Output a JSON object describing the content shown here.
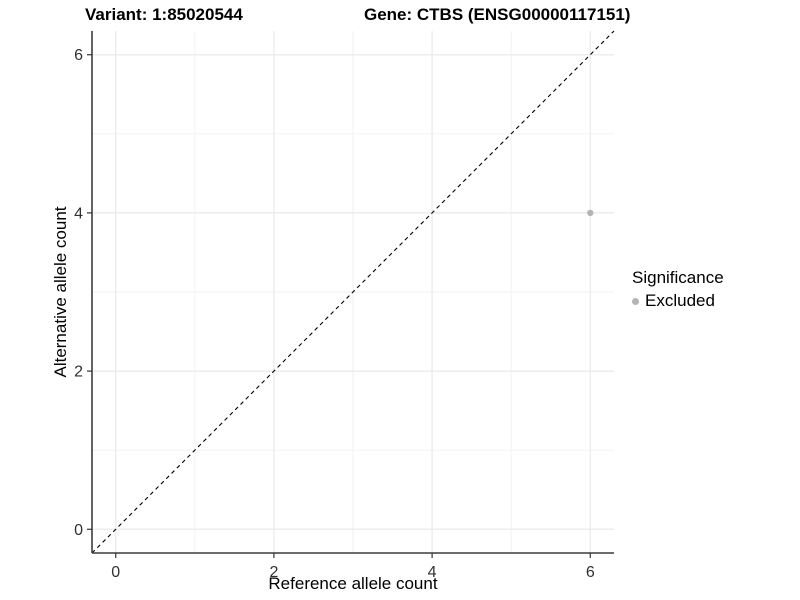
{
  "chart_data": {
    "type": "scatter",
    "titles": {
      "left": "Variant: 1:85020544",
      "right": "Gene: CTBS (ENSG00000117151)"
    },
    "xlabel": "Reference allele count",
    "ylabel": "Alternative allele count",
    "xlim": [
      -0.3,
      6.3
    ],
    "ylim": [
      -0.3,
      6.3
    ],
    "x_ticks": [
      0,
      2,
      4,
      6
    ],
    "y_ticks": [
      0,
      2,
      4,
      6
    ],
    "grid": {
      "x_major": [
        0,
        2,
        4,
        6
      ],
      "x_minor": [
        1,
        3,
        5
      ],
      "y_major": [
        0,
        2,
        4,
        6
      ],
      "y_minor": [
        1,
        3,
        5
      ]
    },
    "points": [
      {
        "x": 6,
        "y": 4,
        "series": "Excluded"
      }
    ],
    "identity_line": {
      "style": "dashed",
      "x1": -0.3,
      "y1": -0.3,
      "x2": 6.3,
      "y2": 6.3
    },
    "legend": {
      "title": "Significance",
      "position": "right",
      "items": [
        {
          "label": "Excluded",
          "color": "#b4b4b4"
        }
      ]
    },
    "colors": {
      "point": "#b4b4b4",
      "grid_major": "#e9e9e9",
      "grid_minor": "#f2f2f2",
      "axis_line": "#3c3c3c",
      "tick_mark": "#333333",
      "tick_label": "#303030",
      "dashed_line": "#000000",
      "background": "#ffffff"
    }
  }
}
